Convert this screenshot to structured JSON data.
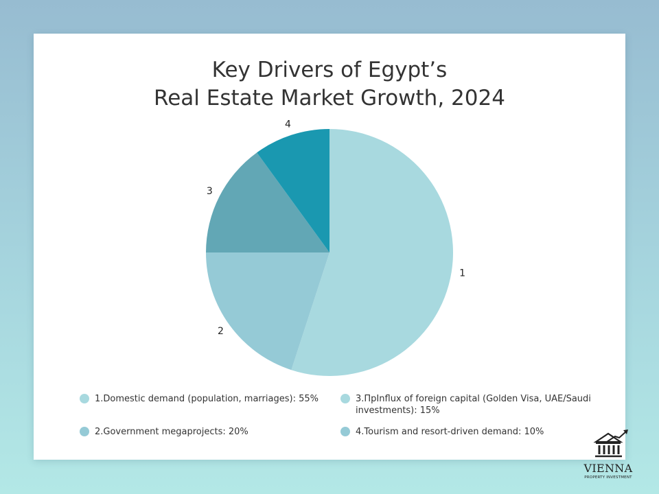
{
  "chart_data": {
    "type": "pie",
    "title": [
      "Key Drivers of Egypt’s",
      "Real Estate Market Growth, 2024"
    ],
    "slices": [
      {
        "label": "1",
        "legend": "1.Domestic demand (population, marriages): 55%",
        "value": 55,
        "color": "#a8d9df"
      },
      {
        "label": "2",
        "legend": "2.Government megaprojects: 20%",
        "value": 20,
        "color": "#95cad6"
      },
      {
        "label": "3",
        "legend_lines": [
          "3.ПрInflux of foreign capital (Golden Visa, UAE/Saudi",
          "investments): 15%"
        ],
        "value": 15,
        "color": "#62a7b5"
      },
      {
        "label": "4",
        "legend": "4.Tourism and resort-driven demand: 10%",
        "value": 10,
        "color": "#1a98b0"
      }
    ],
    "legend_placement": "bottom"
  },
  "logo": {
    "name": "VIENNA",
    "tagline": "PROPERTY INVESTMENT"
  }
}
